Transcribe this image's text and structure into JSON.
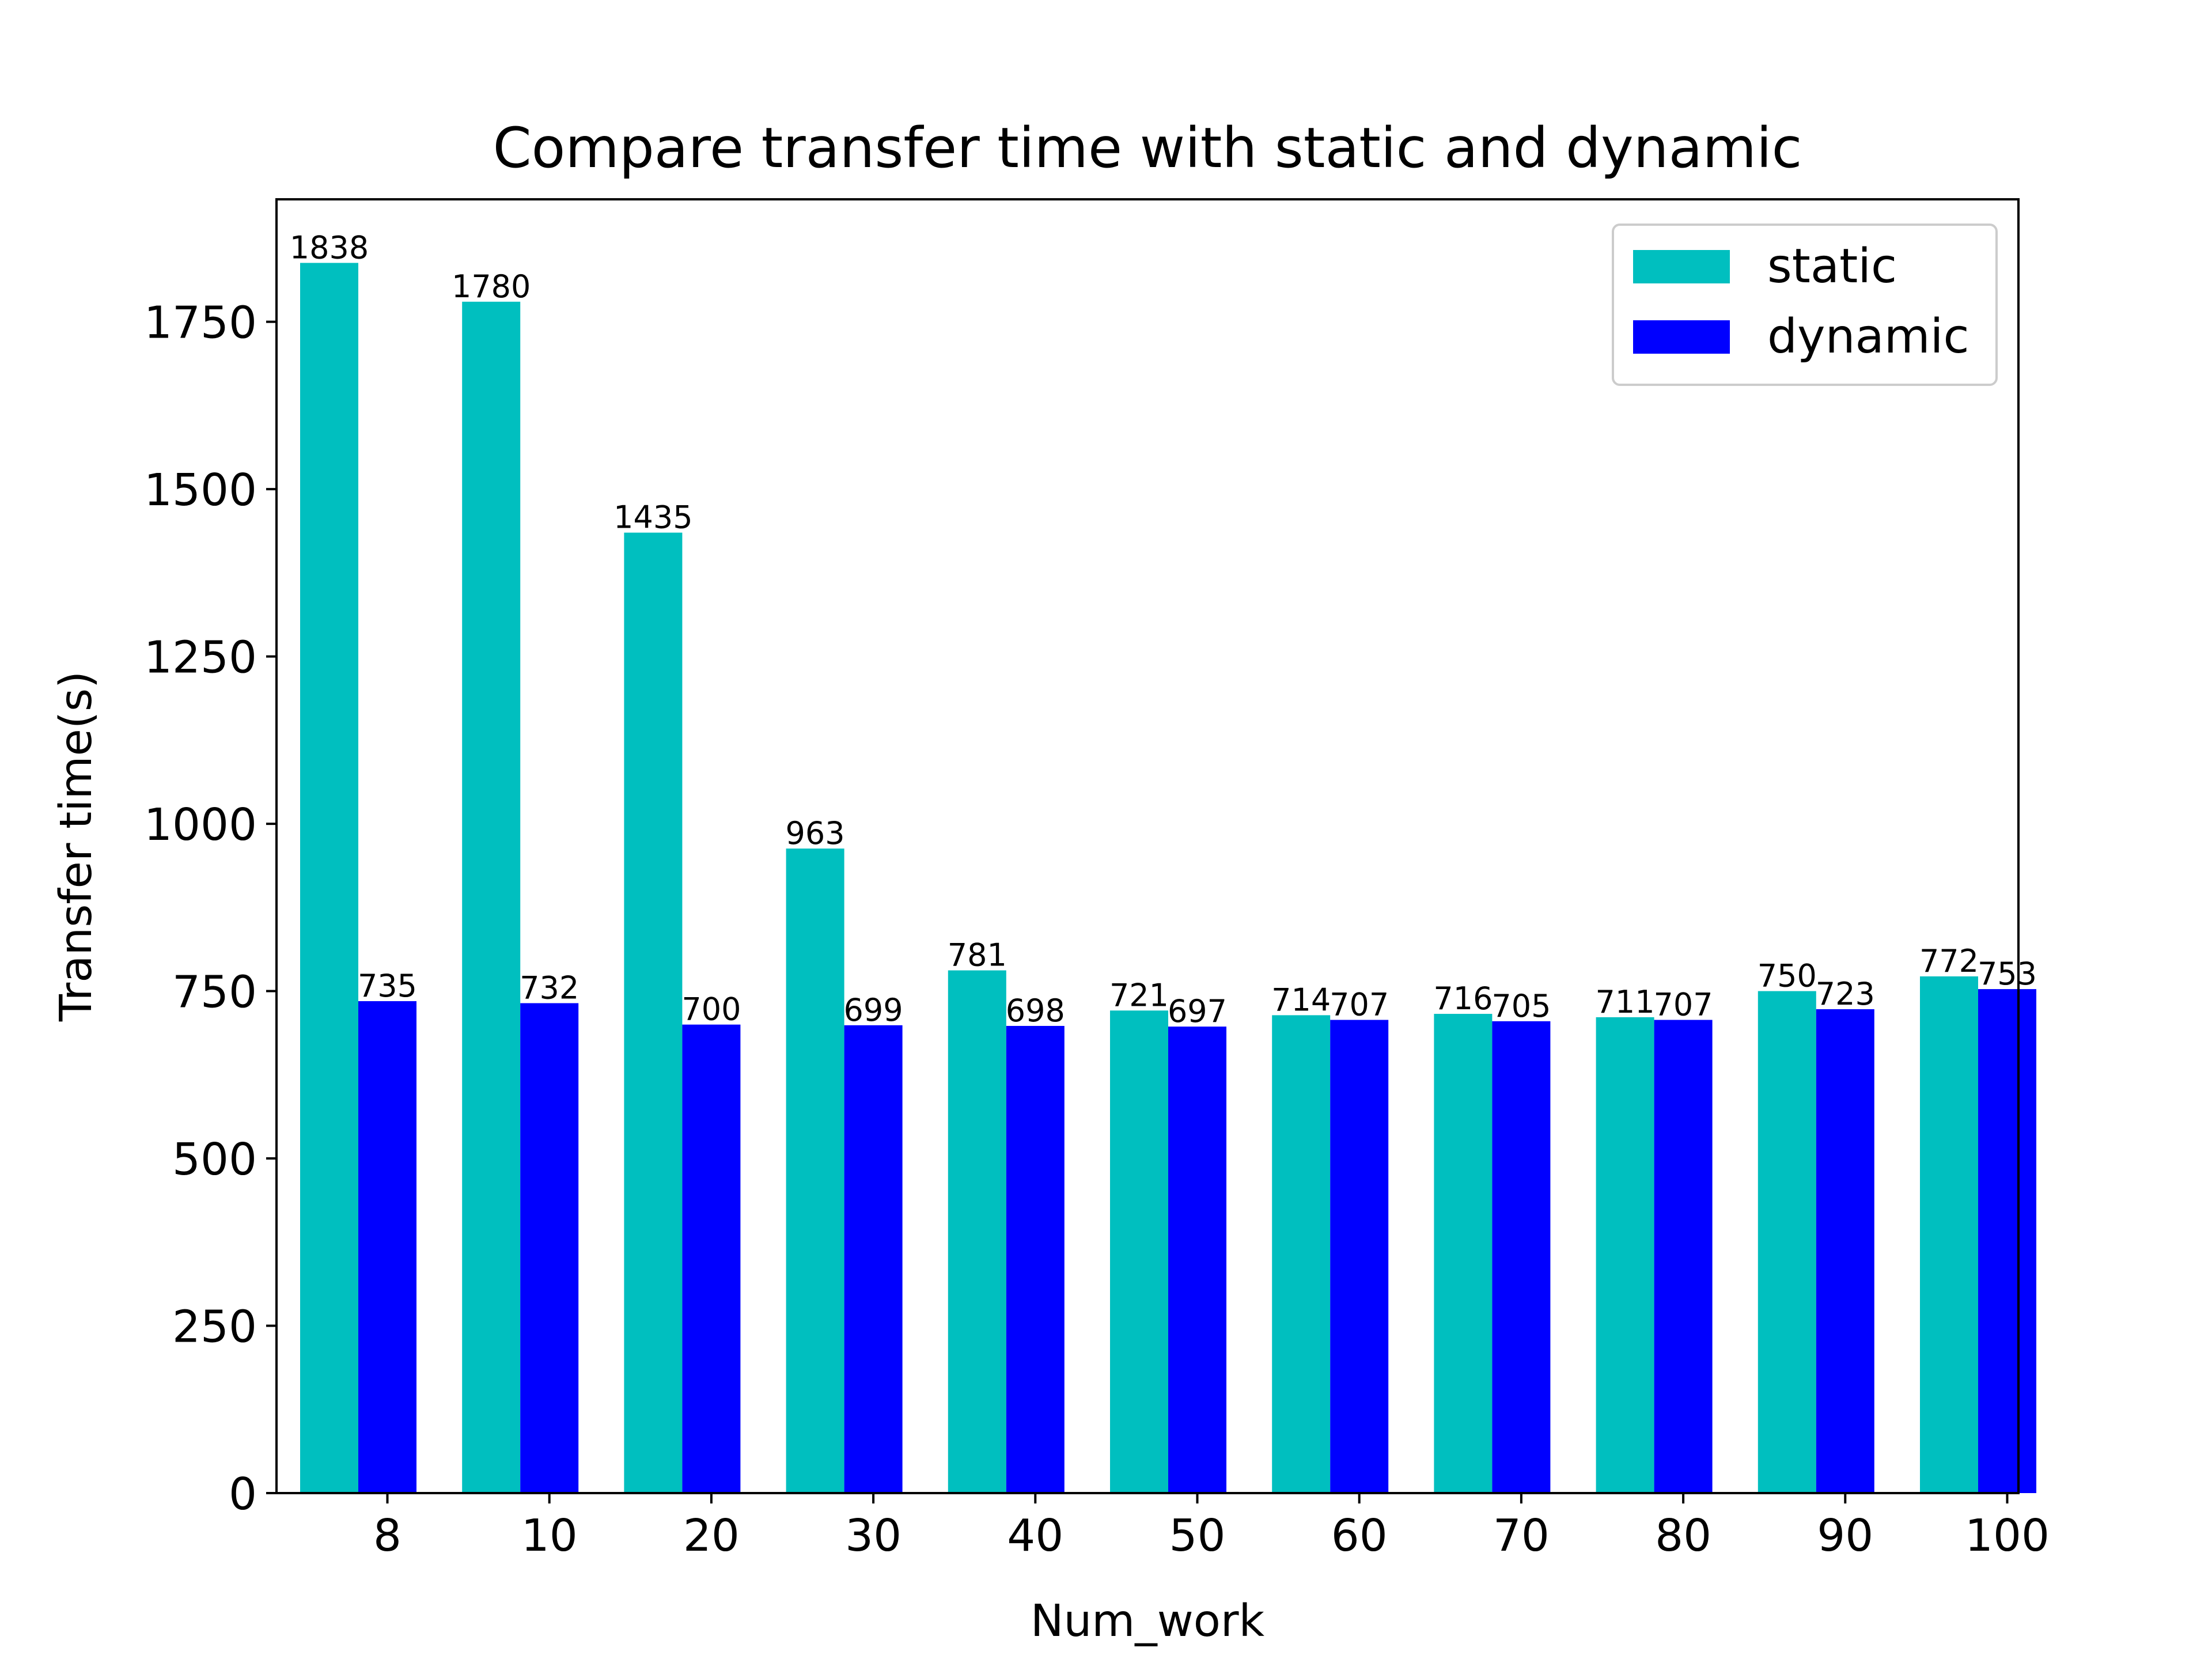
{
  "chart_data": {
    "type": "bar",
    "title": "Compare transfer time with static and dynamic",
    "xlabel": "Num_work",
    "ylabel": "Transfer time(s)",
    "categories": [
      "8",
      "10",
      "20",
      "30",
      "40",
      "50",
      "60",
      "70",
      "80",
      "90",
      "100"
    ],
    "series": [
      {
        "name": "static",
        "color": "#00bfbf",
        "values": [
          1838,
          1780,
          1435,
          963,
          781,
          721,
          714,
          716,
          711,
          750,
          772
        ]
      },
      {
        "name": "dynamic",
        "color": "#0000ff",
        "values": [
          735,
          732,
          700,
          699,
          698,
          697,
          707,
          705,
          707,
          723,
          753
        ]
      }
    ],
    "ylim": [
      0,
      1933
    ],
    "yticks": [
      0,
      250,
      500,
      750,
      1000,
      1250,
      1500,
      1750
    ],
    "grid": false,
    "legend_position": "top-right",
    "data_labels": true
  }
}
